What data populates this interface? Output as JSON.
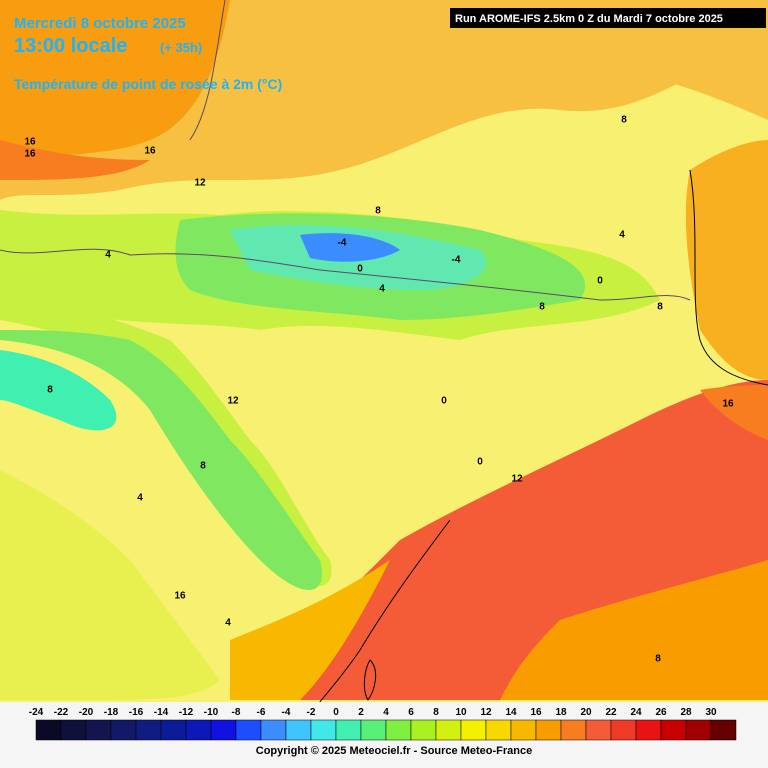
{
  "header": {
    "date": "Mercredi 8 octobre 2025",
    "time": "13:00 locale",
    "lead": "(+ 35h)",
    "parameter": "Température de point de rosée à 2m (°C)"
  },
  "run": "Run AROME-IFS 2.5km 0 Z du Mardi 7 octobre 2025",
  "legend": {
    "ticks": [
      -24,
      -22,
      -20,
      -18,
      -16,
      -14,
      -12,
      -10,
      -8,
      -6,
      -4,
      -2,
      0,
      2,
      4,
      6,
      8,
      10,
      12,
      14,
      16,
      18,
      20,
      22,
      24,
      26,
      28,
      30
    ],
    "colors": [
      "#0a0a28",
      "#10103c",
      "#141450",
      "#141868",
      "#101c80",
      "#0c1c98",
      "#0c18b8",
      "#1010e0",
      "#1e4cff",
      "#3a8cff",
      "#40c4ff",
      "#40e8e8",
      "#40f0b0",
      "#58f078",
      "#80f040",
      "#a8f020",
      "#d4f010",
      "#f4f000",
      "#f8d800",
      "#f8b800",
      "#f89c00",
      "#f87c20",
      "#f45c38",
      "#f03a28",
      "#e81414",
      "#c80000",
      "#a00000",
      "#640000"
    ]
  },
  "contour_labels": [
    "16",
    "16",
    "12",
    "8",
    "4",
    "-4",
    "0",
    "-4",
    "4",
    "0",
    "4",
    "8",
    "8",
    "8",
    "8",
    "0",
    "12",
    "8",
    "4",
    "0",
    "12",
    "16",
    "16",
    "4",
    "8",
    "16"
  ],
  "copyright": "Copyright © 2025 Meteociel.fr - Source Meteo-France"
}
